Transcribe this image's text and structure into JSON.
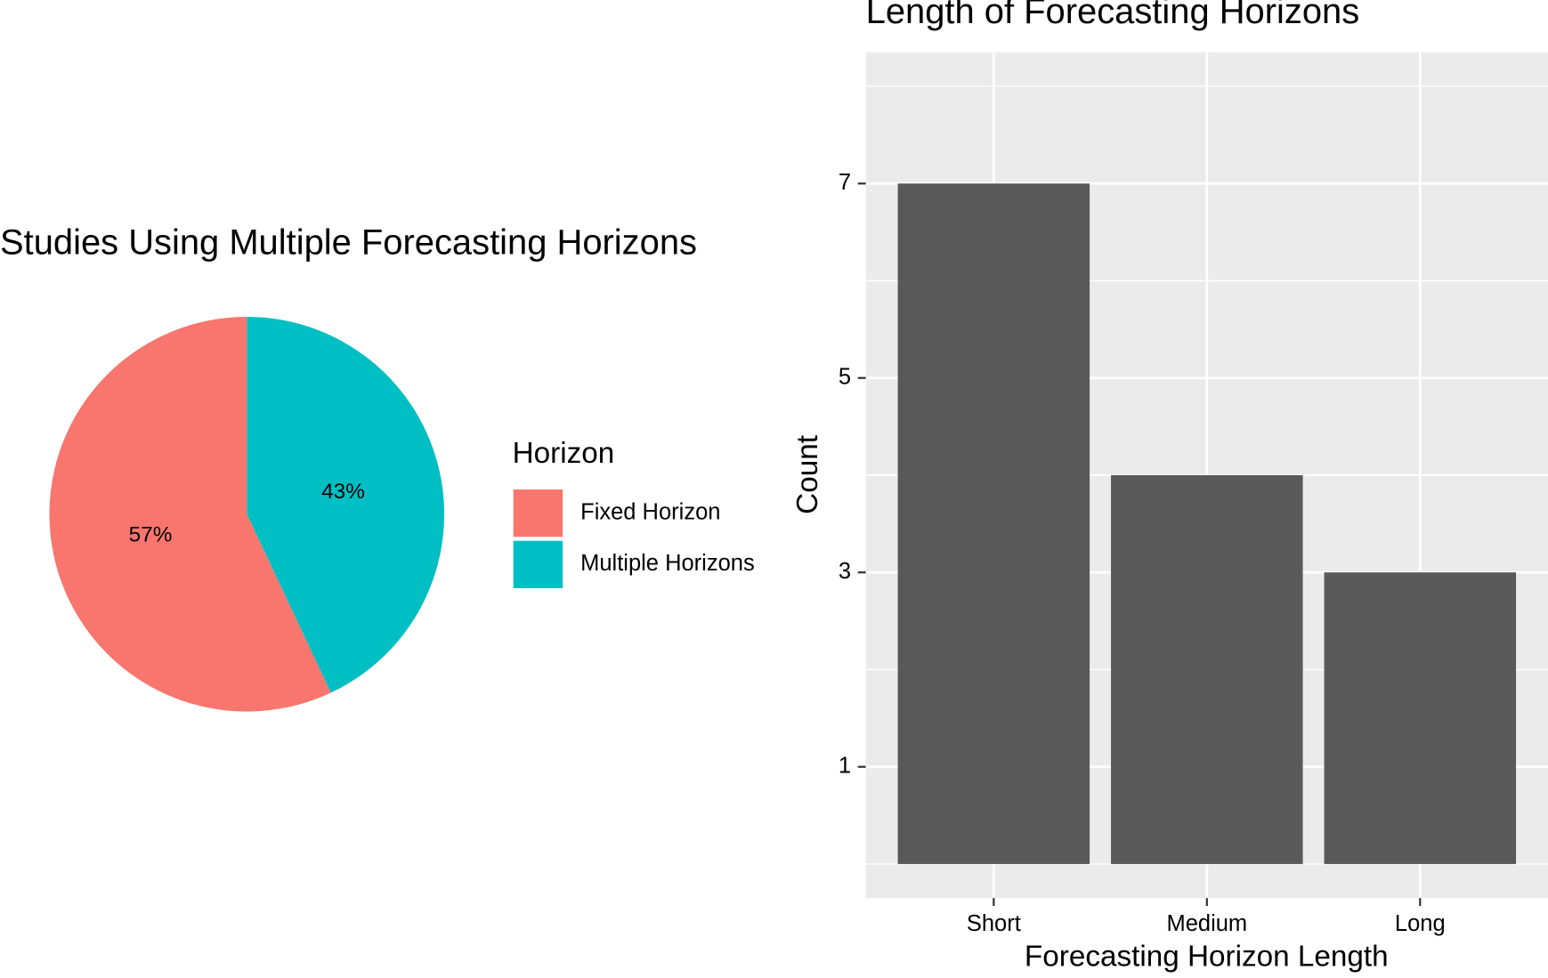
{
  "chart_data": [
    {
      "type": "pie",
      "title": "Studies Using Multiple Forecasting Horizons",
      "legend_title": "Horizon",
      "categories": [
        "Fixed Horizon",
        "Multiple Horizons"
      ],
      "values": [
        57,
        43
      ],
      "value_labels": [
        "57%",
        "43%"
      ],
      "colors": [
        "#f8766d",
        "#00bfc4"
      ]
    },
    {
      "type": "bar",
      "title": "Length of Forecasting Horizons",
      "x_label": "Forecasting Horizon Length",
      "y_label": "Count",
      "categories": [
        "Short",
        "Medium",
        "Long"
      ],
      "values": [
        7,
        4,
        3
      ],
      "color": "#595959",
      "ylim": [
        -0.35,
        8.35
      ],
      "yticks": [
        1,
        3,
        5,
        7
      ],
      "grid": true
    }
  ]
}
